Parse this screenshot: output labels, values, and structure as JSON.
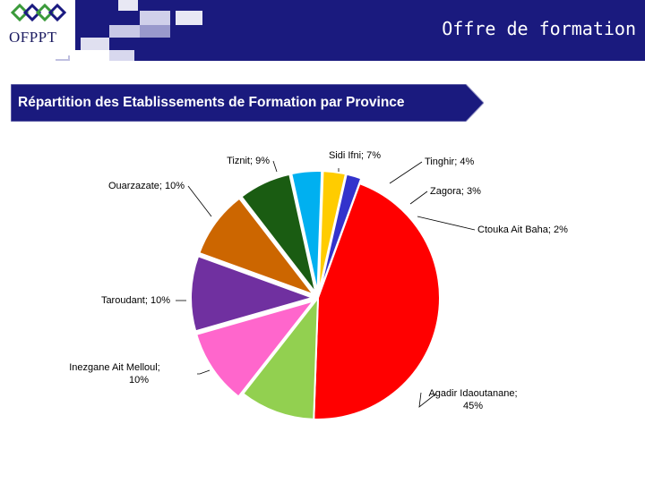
{
  "header": {
    "title": "Offre de formation",
    "logo_text": "OFPPT",
    "band_color": "#1a1a7e"
  },
  "banner": {
    "title": "Répartition des Etablissements de Formation par Province"
  },
  "chart_data": {
    "type": "pie",
    "title": "",
    "slices": [
      {
        "label": "Agadir Idaoutanane",
        "value": 45,
        "color": "#ff0000",
        "label_text": [
          "Agadir Idaoutanane;",
          "45%"
        ]
      },
      {
        "label": "Inezgane Ait Melloul",
        "value": 10,
        "color": "#92d050",
        "label_text": [
          "Inezgane Ait Melloul;",
          "10%"
        ]
      },
      {
        "label": "Taroudant",
        "value": 10,
        "color": "#ff66cc",
        "label_text": [
          "Taroudant; 10%"
        ]
      },
      {
        "label": "Ouarzazate",
        "value": 10,
        "color": "#7030a0",
        "label_text": [
          "Ouarzazate; 10%"
        ]
      },
      {
        "label": "Tiznit",
        "value": 9,
        "color": "#cc6600",
        "label_text": [
          "Tiznit; 9%"
        ]
      },
      {
        "label": "Sidi Ifni",
        "value": 7,
        "color": "#1a5c12",
        "label_text": [
          "Sidi Ifni; 7%"
        ]
      },
      {
        "label": "Tinghir",
        "value": 4,
        "color": "#00b0f0",
        "label_text": [
          "Tinghir; 4%"
        ]
      },
      {
        "label": "Zagora",
        "value": 3,
        "color": "#ffcc00",
        "label_text": [
          "Zagora; 3%"
        ]
      },
      {
        "label": "Ctouka Ait Baha",
        "value": 2,
        "color": "#3333cc",
        "label_text": [
          "Ctouka Ait Baha; 2%"
        ]
      }
    ]
  }
}
